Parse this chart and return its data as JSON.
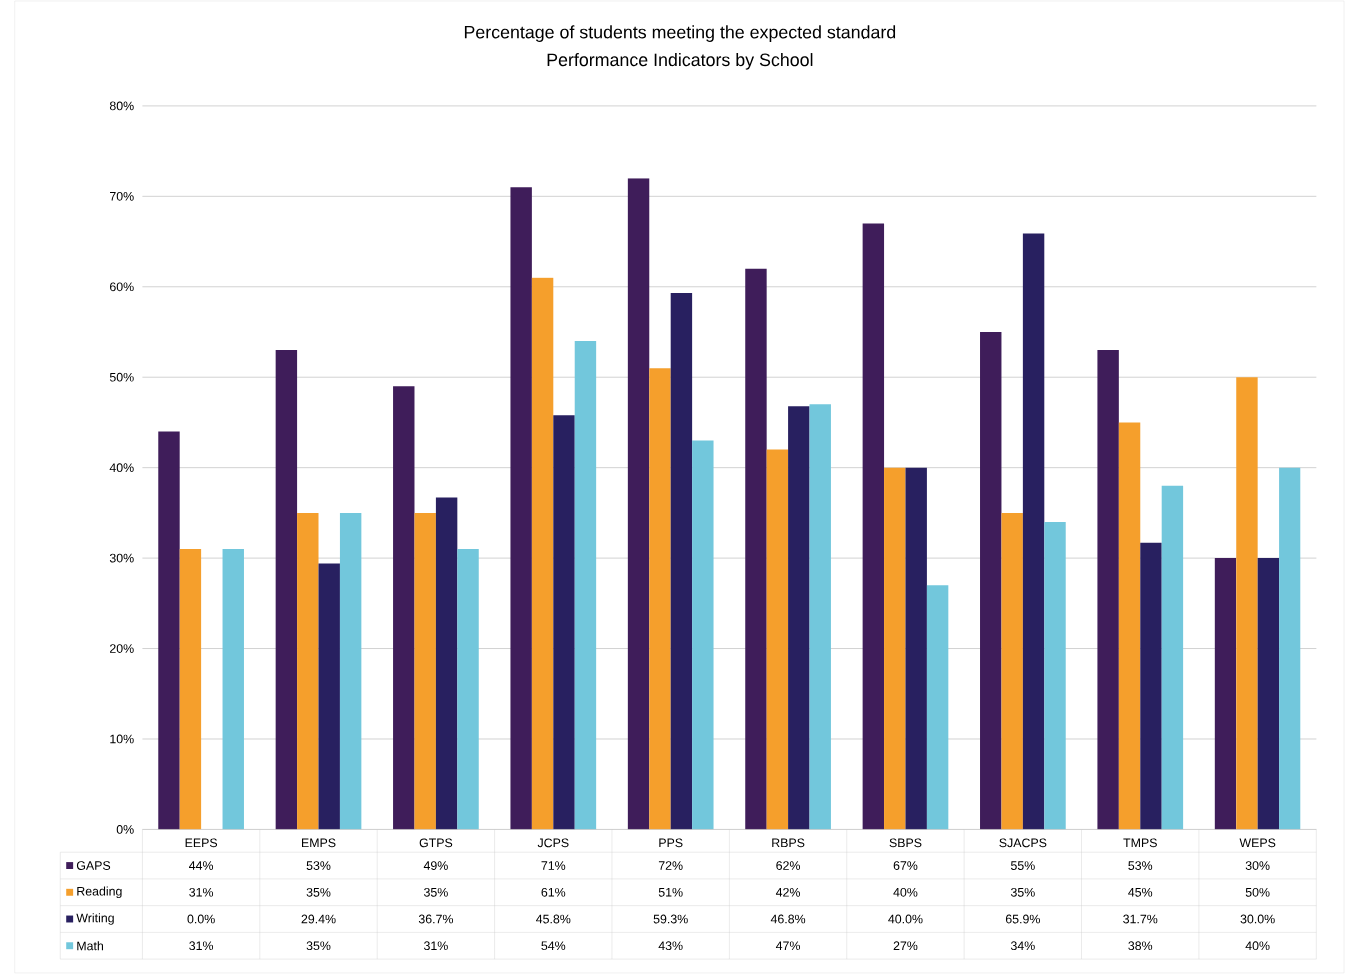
{
  "chart_data": {
    "type": "bar",
    "title": "Percentage of students meeting the expected standard",
    "subtitle": "Performance Indicators by School",
    "categories": [
      "EEPS",
      "EMPS",
      "GTPS",
      "JCPS",
      "PPS",
      "RBPS",
      "SBPS",
      "SJACPS",
      "TMPS",
      "WEPS"
    ],
    "series": [
      {
        "name": "GAPS",
        "color": "#3f1d5a",
        "values": [
          44,
          53,
          49,
          71,
          72,
          62,
          67,
          55,
          53,
          30
        ],
        "value_labels": [
          "44%",
          "53%",
          "49%",
          "71%",
          "72%",
          "62%",
          "67%",
          "55%",
          "53%",
          "30%"
        ]
      },
      {
        "name": "Reading",
        "color": "#f59f2c",
        "values": [
          31,
          35,
          35,
          61,
          51,
          42,
          40,
          35,
          45,
          50
        ],
        "value_labels": [
          "31%",
          "35%",
          "35%",
          "61%",
          "51%",
          "42%",
          "40%",
          "35%",
          "45%",
          "50%"
        ]
      },
      {
        "name": "Writing",
        "color": "#282060",
        "values": [
          0.0,
          29.4,
          36.7,
          45.8,
          59.3,
          46.8,
          40.0,
          65.9,
          31.7,
          30.0
        ],
        "value_labels": [
          "0.0%",
          "29.4%",
          "36.7%",
          "45.8%",
          "59.3%",
          "46.8%",
          "40.0%",
          "65.9%",
          "31.7%",
          "30.0%"
        ]
      },
      {
        "name": "Math",
        "color": "#72c7dc",
        "values": [
          31,
          35,
          31,
          54,
          43,
          47,
          27,
          34,
          38,
          40
        ],
        "value_labels": [
          "31%",
          "35%",
          "31%",
          "54%",
          "43%",
          "47%",
          "27%",
          "34%",
          "38%",
          "40%"
        ]
      }
    ],
    "ylim": [
      0,
      80
    ],
    "yticks": [
      {
        "value": 0,
        "label": "0%"
      },
      {
        "value": 10,
        "label": "10%"
      },
      {
        "value": 20,
        "label": "20%"
      },
      {
        "value": 30,
        "label": "30%"
      },
      {
        "value": 40,
        "label": "40%"
      },
      {
        "value": 50,
        "label": "50%"
      },
      {
        "value": 60,
        "label": "60%"
      },
      {
        "value": 70,
        "label": "70%"
      },
      {
        "value": 80,
        "label": "80%"
      }
    ],
    "grid": "y",
    "legend": "bottom"
  }
}
